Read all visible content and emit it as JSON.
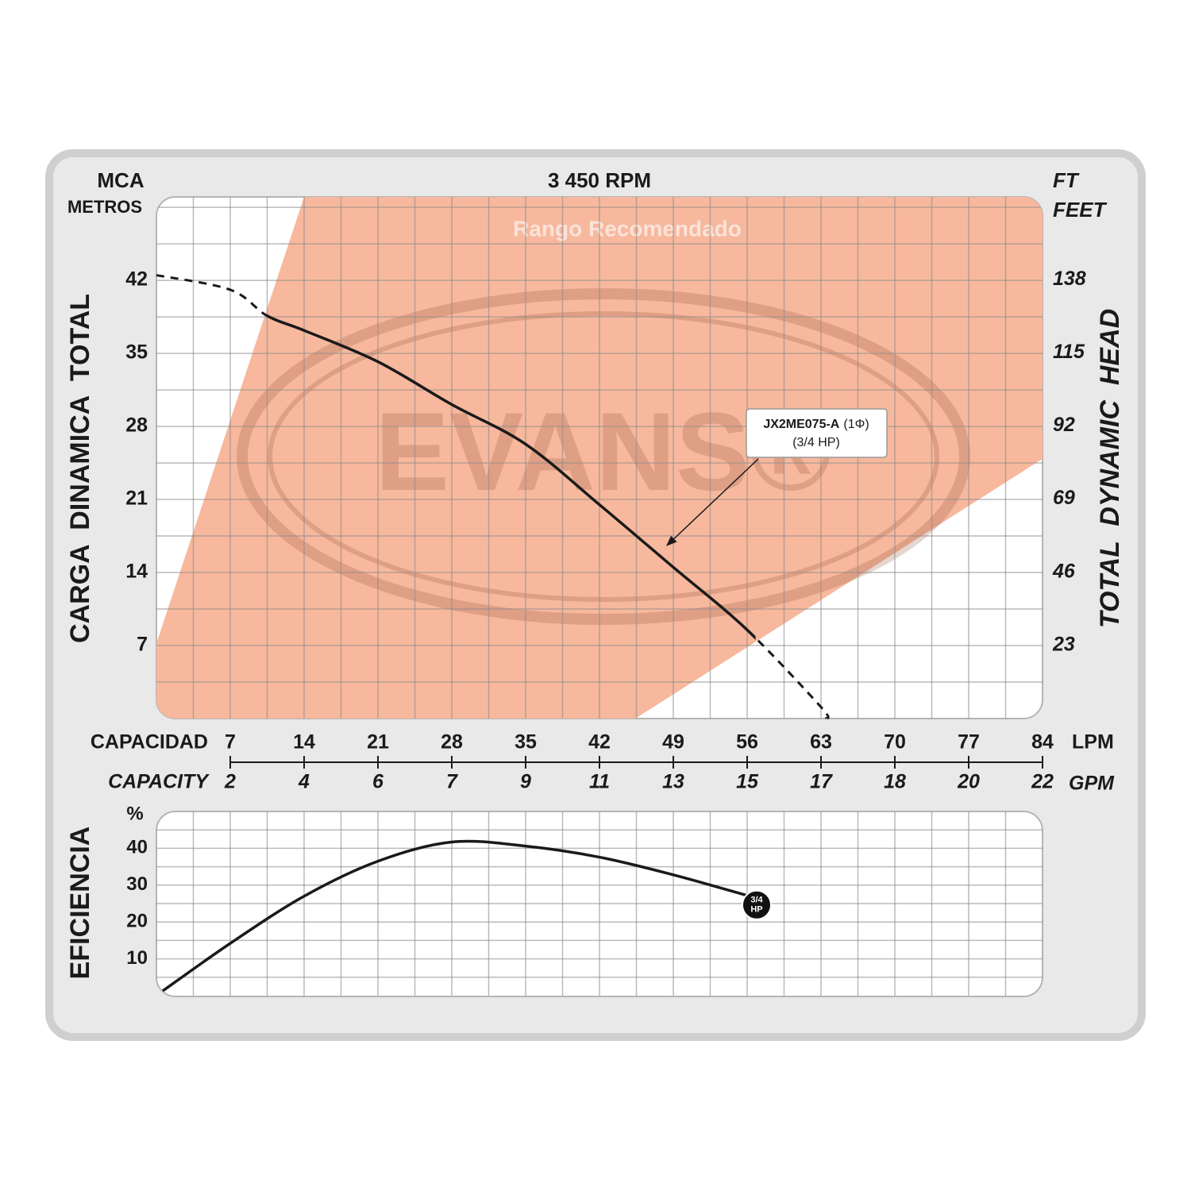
{
  "chart_data": [
    {
      "type": "line",
      "title": "3 450 RPM",
      "y_label": "MCA",
      "y_sublabel": "METROS",
      "y_title": "CARGA  DINAMICA  TOTAL",
      "y2_label": "FT",
      "y2_sublabel": "FEET",
      "y2_title": "TOTAL  DYNAMIC  HEAD",
      "x_label": "CAPACIDAD",
      "x_unit": "LPM",
      "x2_label": "CAPACITY",
      "x2_unit": "GPM",
      "xlim": [
        0,
        84
      ],
      "xticks": [
        7,
        14,
        21,
        28,
        35,
        42,
        49,
        56,
        63,
        70,
        77,
        84
      ],
      "x2ticks": [
        2,
        4,
        6,
        7,
        9,
        11,
        13,
        15,
        17,
        18,
        20,
        22
      ],
      "ylim": [
        0,
        50
      ],
      "yticks": [
        7,
        14,
        21,
        28,
        35,
        42
      ],
      "y2lim": [
        0,
        164
      ],
      "y2ticks": [
        23,
        46,
        69,
        92,
        115,
        138
      ],
      "grid_step": [
        3.5,
        3.5
      ],
      "x": [
        0,
        7,
        10.5,
        14,
        21,
        28,
        35,
        42,
        49,
        56,
        63,
        63.5
      ],
      "series": [
        {
          "values": [
            42.5,
            41.1,
            38.6,
            37.2,
            34.2,
            30.1,
            26.3,
            20.5,
            14.5,
            8.5,
            1.1,
            0
          ],
          "color": "#1a1a1a",
          "solid_xlim": [
            10.5,
            56.8
          ]
        }
      ],
      "region": {
        "label": "Rango Recomendado",
        "color": "#f7b89d",
        "x": [
          0,
          14,
          84,
          84,
          45.4,
          0
        ],
        "y": [
          7.2,
          50,
          50,
          24.9,
          0,
          0
        ]
      },
      "watermark": "EVANS®",
      "annotation": {
        "model": "JX2ME075-A",
        "phase": "(1Φ)",
        "power": "(3/4 HP)",
        "xy": [
          48.4,
          16.6
        ]
      }
    },
    {
      "type": "line",
      "y_title": "EFICIENCIA",
      "y_label": "%",
      "xlim": [
        0,
        84
      ],
      "ylim": [
        0,
        50
      ],
      "yticks": [
        10,
        20,
        30,
        40
      ],
      "grid_step": [
        3.5,
        5
      ],
      "x": [
        0.6,
        7,
        14,
        21,
        28,
        35,
        42,
        49,
        56
      ],
      "series": [
        {
          "values": [
            1.3,
            14.2,
            27,
            36.5,
            41.7,
            40.6,
            37.6,
            32.8,
            27.2
          ],
          "color": "#1a1a1a",
          "end_label": [
            "3/4",
            "HP"
          ]
        }
      ]
    }
  ]
}
